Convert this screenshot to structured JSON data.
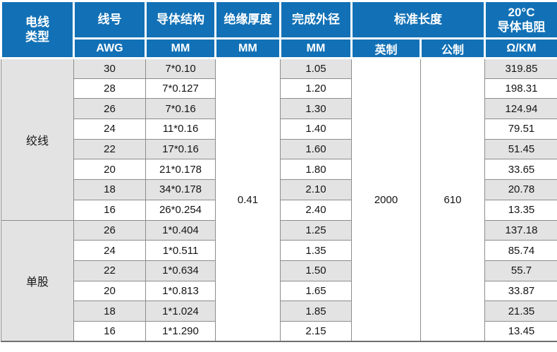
{
  "table": {
    "header": {
      "wire_type_lines": [
        "电线",
        "类型"
      ],
      "gauge": {
        "label": "线号",
        "unit": "AWG"
      },
      "conductor": {
        "label": "导体结构",
        "unit": "MM"
      },
      "insulation": {
        "label": "绝缘厚度",
        "unit": "MM"
      },
      "outer_diameter": {
        "label": "完成外径",
        "unit": "MM"
      },
      "standard_length": {
        "label": "标准长度",
        "units": [
          "英制",
          "公制"
        ]
      },
      "resistance": {
        "label_lines": [
          "20°C",
          "导体电阻"
        ],
        "unit": "Ω/KM"
      }
    },
    "sections": [
      {
        "type": "绞线",
        "rows": [
          {
            "awg": "30",
            "conductor": "7*0.10",
            "od": "1.05",
            "resistance": "319.85"
          },
          {
            "awg": "28",
            "conductor": "7*0.127",
            "od": "1.20",
            "resistance": "198.31"
          },
          {
            "awg": "26",
            "conductor": "7*0.16",
            "od": "1.30",
            "resistance": "124.94"
          },
          {
            "awg": "24",
            "conductor": "11*0.16",
            "od": "1.40",
            "resistance": "79.51"
          },
          {
            "awg": "22",
            "conductor": "17*0.16",
            "od": "1.60",
            "resistance": "51.45"
          },
          {
            "awg": "20",
            "conductor": "21*0.178",
            "od": "1.80",
            "resistance": "33.65"
          },
          {
            "awg": "18",
            "conductor": "34*0.178",
            "od": "2.10",
            "resistance": "20.78"
          },
          {
            "awg": "16",
            "conductor": "26*0.254",
            "od": "2.40",
            "resistance": "13.35"
          }
        ]
      },
      {
        "type": "单股",
        "rows": [
          {
            "awg": "26",
            "conductor": "1*0.404",
            "od": "1.25",
            "resistance": "137.18"
          },
          {
            "awg": "24",
            "conductor": "1*0.511",
            "od": "1.35",
            "resistance": "85.74"
          },
          {
            "awg": "22",
            "conductor": "1*0.634",
            "od": "1.50",
            "resistance": "55.7"
          },
          {
            "awg": "20",
            "conductor": "1*0.813",
            "od": "1.65",
            "resistance": "33.87"
          },
          {
            "awg": "18",
            "conductor": "1*1.024",
            "od": "1.85",
            "resistance": "21.35"
          },
          {
            "awg": "16",
            "conductor": "1*1.290",
            "od": "2.15",
            "resistance": "13.45"
          }
        ]
      }
    ],
    "merged": {
      "insulation_mm": "0.41",
      "length_imperial": "2000",
      "length_metric": "610"
    },
    "colors": {
      "header_bg": "#1271b6",
      "header_text": "#ffffff",
      "stripe_bg": "#e3e3e3",
      "cell_border": "#8c8c8c",
      "bottom_border": "#6f6f6f"
    }
  }
}
